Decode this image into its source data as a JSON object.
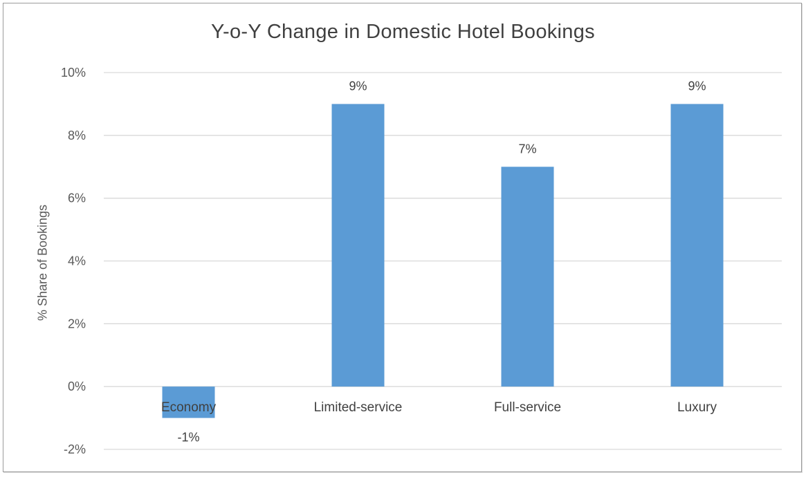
{
  "chart_data": {
    "type": "bar",
    "title": "Y-o-Y Change in Domestic Hotel Bookings",
    "xlabel": "",
    "ylabel": "% Share of Bookings",
    "categories": [
      "Economy",
      "Limited-service",
      "Full-service",
      "Luxury"
    ],
    "values": [
      -1,
      9,
      7,
      9
    ],
    "data_labels": [
      "-1%",
      "9%",
      "7%",
      "9%"
    ],
    "ylim": [
      -2,
      10
    ],
    "y_ticks": [
      -2,
      0,
      2,
      4,
      6,
      8,
      10
    ],
    "y_tick_labels": [
      "-2%",
      "0%",
      "2%",
      "4%",
      "6%",
      "8%",
      "10%"
    ],
    "grid": true,
    "legend": "none",
    "bar_color": "#5b9bd5",
    "grid_color": "#d9d9d9"
  }
}
